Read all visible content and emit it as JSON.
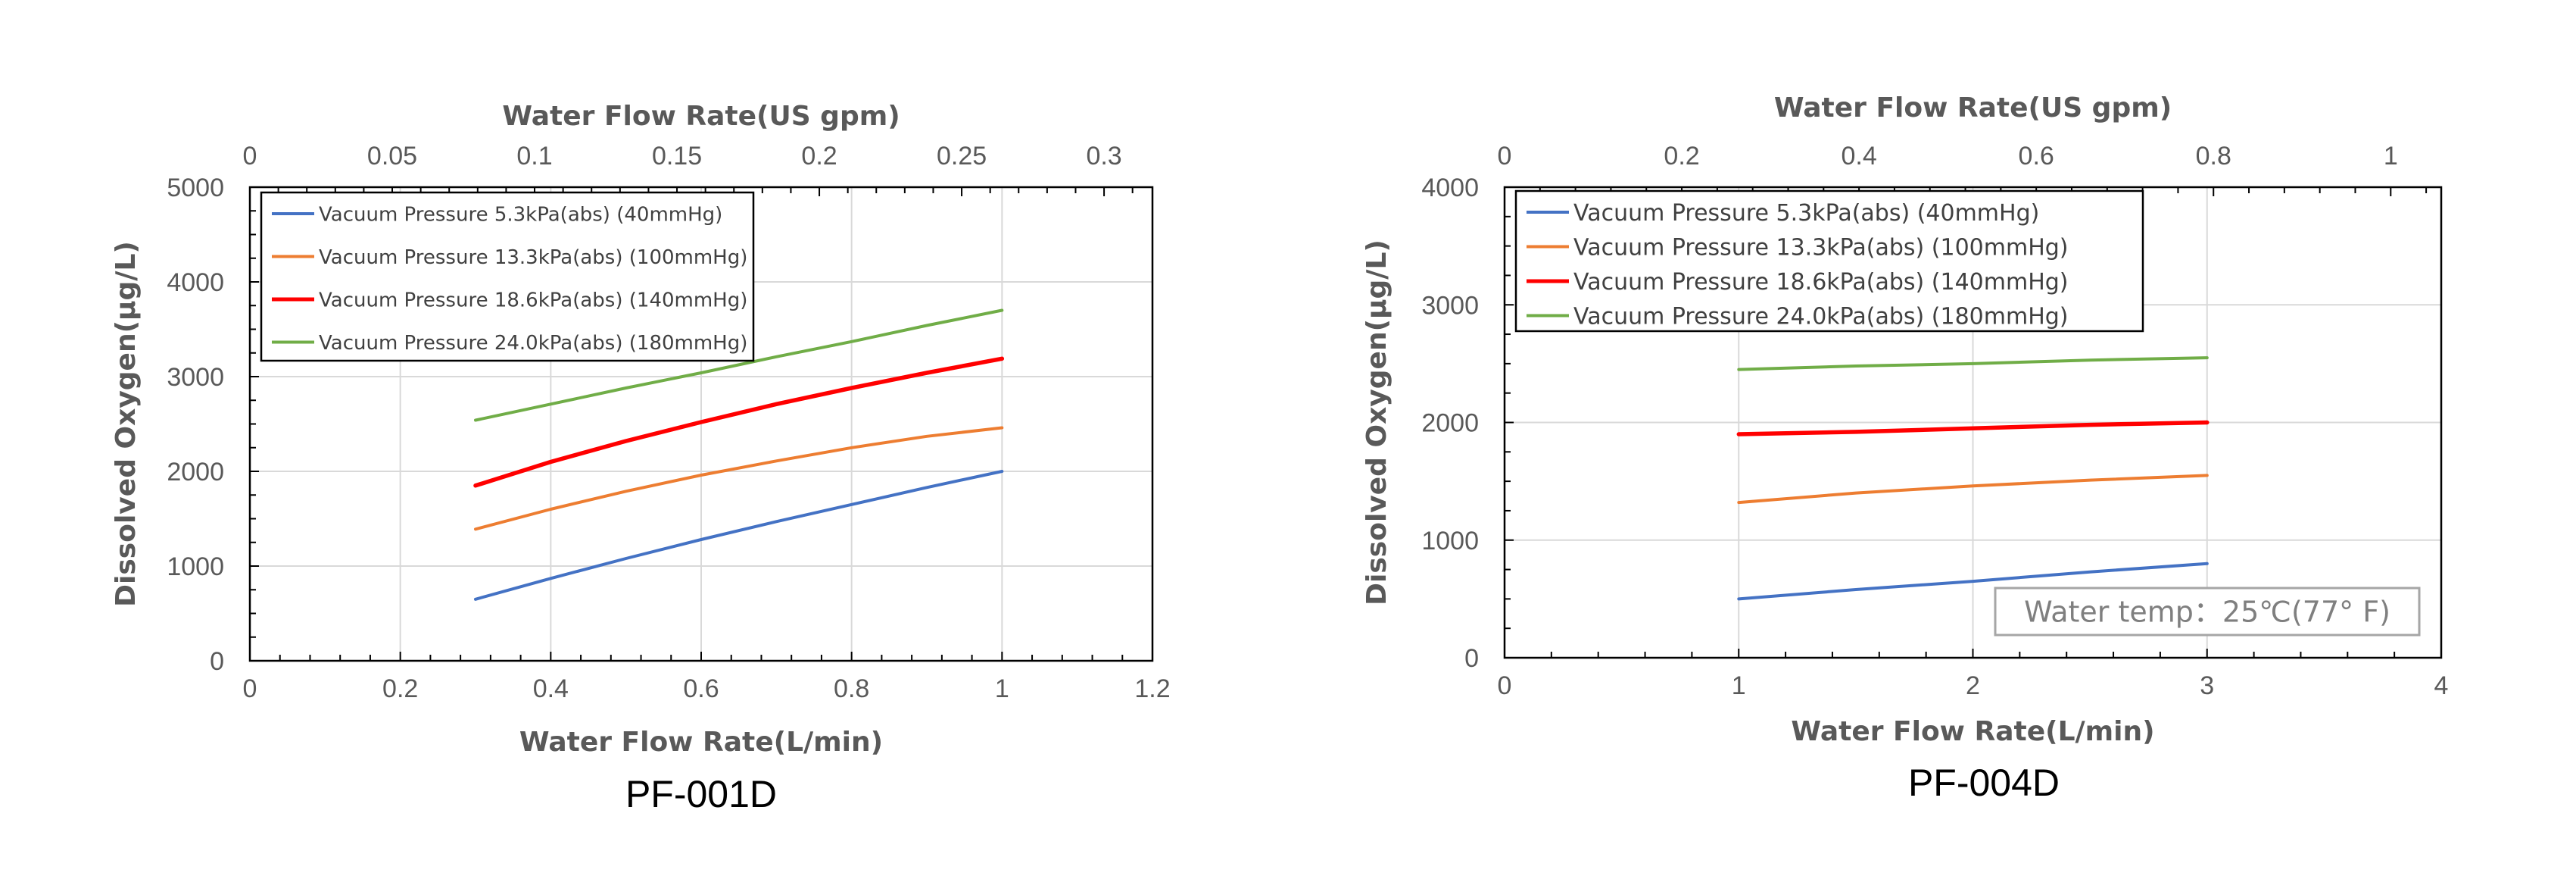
{
  "chart_data": [
    {
      "type": "line",
      "caption": "PF-001D",
      "xlabel": "Water Flow Rate(L/min)",
      "ylabel": "Dissolved Oxygen(μg/L)",
      "x2label": "Water Flow Rate(US gpm)",
      "xlim": [
        0,
        1.2
      ],
      "ylim": [
        0,
        5000
      ],
      "x2lim": [
        0,
        0.317
      ],
      "xticks": [
        "0",
        "0.2",
        "0.4",
        "0.6",
        "0.8",
        "1",
        "1.2"
      ],
      "yticks": [
        "0",
        "1000",
        "2000",
        "3000",
        "4000",
        "5000"
      ],
      "x2ticks": [
        "0",
        "0.05",
        "0.1",
        "0.15",
        "0.2",
        "0.25",
        "0.3"
      ],
      "grid": true,
      "legend_position": "top-left",
      "series": [
        {
          "name": "Vacuum Pressure 5.3kPa(abs) (40mmHg)",
          "color": "#4472C4",
          "x": [
            0.3,
            0.4,
            0.5,
            0.6,
            0.7,
            0.8,
            0.9,
            1.0
          ],
          "y": [
            650,
            870,
            1080,
            1280,
            1470,
            1650,
            1830,
            2000
          ]
        },
        {
          "name": "Vacuum Pressure 13.3kPa(abs) (100mmHg)",
          "color": "#ED7D31",
          "x": [
            0.3,
            0.4,
            0.5,
            0.6,
            0.7,
            0.8,
            0.9,
            1.0
          ],
          "y": [
            1390,
            1600,
            1790,
            1960,
            2110,
            2250,
            2370,
            2460
          ]
        },
        {
          "name": "Vacuum Pressure 18.6kPa(abs) (140mmHg)",
          "color": "#FF0000",
          "x": [
            0.3,
            0.4,
            0.5,
            0.6,
            0.7,
            0.8,
            0.9,
            1.0
          ],
          "y": [
            1850,
            2100,
            2320,
            2520,
            2710,
            2880,
            3040,
            3190
          ]
        },
        {
          "name": "Vacuum Pressure 24.0kPa(abs) (180mmHg)",
          "color": "#70AD47",
          "x": [
            0.3,
            0.4,
            0.5,
            0.6,
            0.7,
            0.8,
            0.9,
            1.0
          ],
          "y": [
            2540,
            2710,
            2880,
            3040,
            3210,
            3370,
            3540,
            3700
          ]
        }
      ]
    },
    {
      "type": "line",
      "caption": "PF-004D",
      "xlabel": "Water Flow Rate(L/min)",
      "ylabel": "Dissolved Oxygen(μg/L)",
      "x2label": "Water Flow Rate(US gpm)",
      "xlim": [
        0,
        4
      ],
      "ylim": [
        0,
        4000
      ],
      "x2lim": [
        0,
        1.057
      ],
      "xticks": [
        "0",
        "1",
        "2",
        "3",
        "4"
      ],
      "yticks": [
        "0",
        "1000",
        "2000",
        "3000",
        "4000"
      ],
      "x2ticks": [
        "0",
        "0.2",
        "0.4",
        "0.6",
        "0.8",
        "1"
      ],
      "grid": true,
      "legend_position": "top-left",
      "note": "Water temp：25℃(77° F)",
      "series": [
        {
          "name": "Vacuum Pressure 5.3kPa(abs) (40mmHg)",
          "color": "#4472C4",
          "x": [
            1,
            1.5,
            2,
            2.5,
            3
          ],
          "y": [
            500,
            580,
            650,
            730,
            800
          ]
        },
        {
          "name": "Vacuum Pressure 13.3kPa(abs) (100mmHg)",
          "color": "#ED7D31",
          "x": [
            1,
            1.5,
            2,
            2.5,
            3
          ],
          "y": [
            1320,
            1400,
            1460,
            1510,
            1550
          ]
        },
        {
          "name": "Vacuum Pressure 18.6kPa(abs) (140mmHg)",
          "color": "#FF0000",
          "x": [
            1,
            1.5,
            2,
            2.5,
            3
          ],
          "y": [
            1900,
            1920,
            1950,
            1980,
            2000
          ]
        },
        {
          "name": "Vacuum Pressure 24.0kPa(abs) (180mmHg)",
          "color": "#70AD47",
          "x": [
            1,
            1.5,
            2,
            2.5,
            3
          ],
          "y": [
            2450,
            2480,
            2500,
            2530,
            2550
          ]
        }
      ]
    }
  ]
}
